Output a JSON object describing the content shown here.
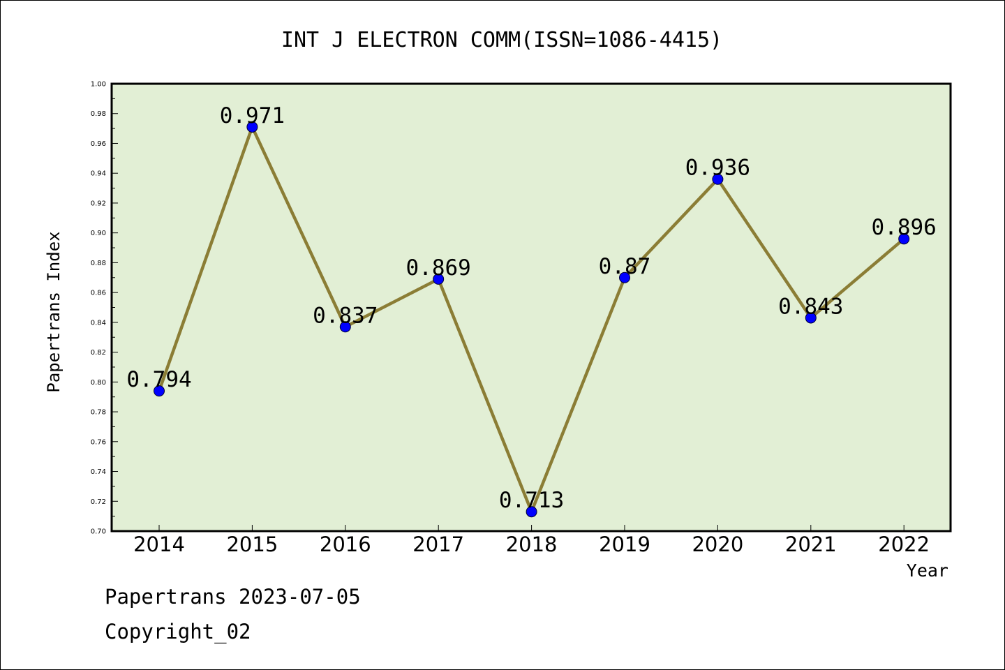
{
  "chart_data": {
    "type": "line",
    "title": "INT J ELECTRON COMM(ISSN=1086-4415)",
    "xlabel": "Year",
    "ylabel": "Papertrans Index",
    "categories": [
      "2014",
      "2015",
      "2016",
      "2017",
      "2018",
      "2019",
      "2020",
      "2021",
      "2022"
    ],
    "values": [
      0.794,
      0.971,
      0.837,
      0.869,
      0.713,
      0.87,
      0.936,
      0.843,
      0.896
    ],
    "value_labels": [
      "0.794",
      "0.971",
      "0.837",
      "0.869",
      "0.713",
      "0.87",
      "0.936",
      "0.843",
      "0.896"
    ],
    "ylim": [
      0.7,
      1.0
    ],
    "yticks": [
      "0.70",
      "0.72",
      "0.74",
      "0.76",
      "0.78",
      "0.80",
      "0.82",
      "0.84",
      "0.86",
      "0.88",
      "0.90",
      "0.92",
      "0.94",
      "0.96",
      "0.98",
      "1.00"
    ],
    "grid": false,
    "colors": {
      "plot_background": "#e2efd5",
      "line": "#8b7d35",
      "marker": "#0000ff"
    }
  },
  "footer": {
    "line1": "Papertrans 2023-07-05",
    "line2": "Copyright_02"
  }
}
